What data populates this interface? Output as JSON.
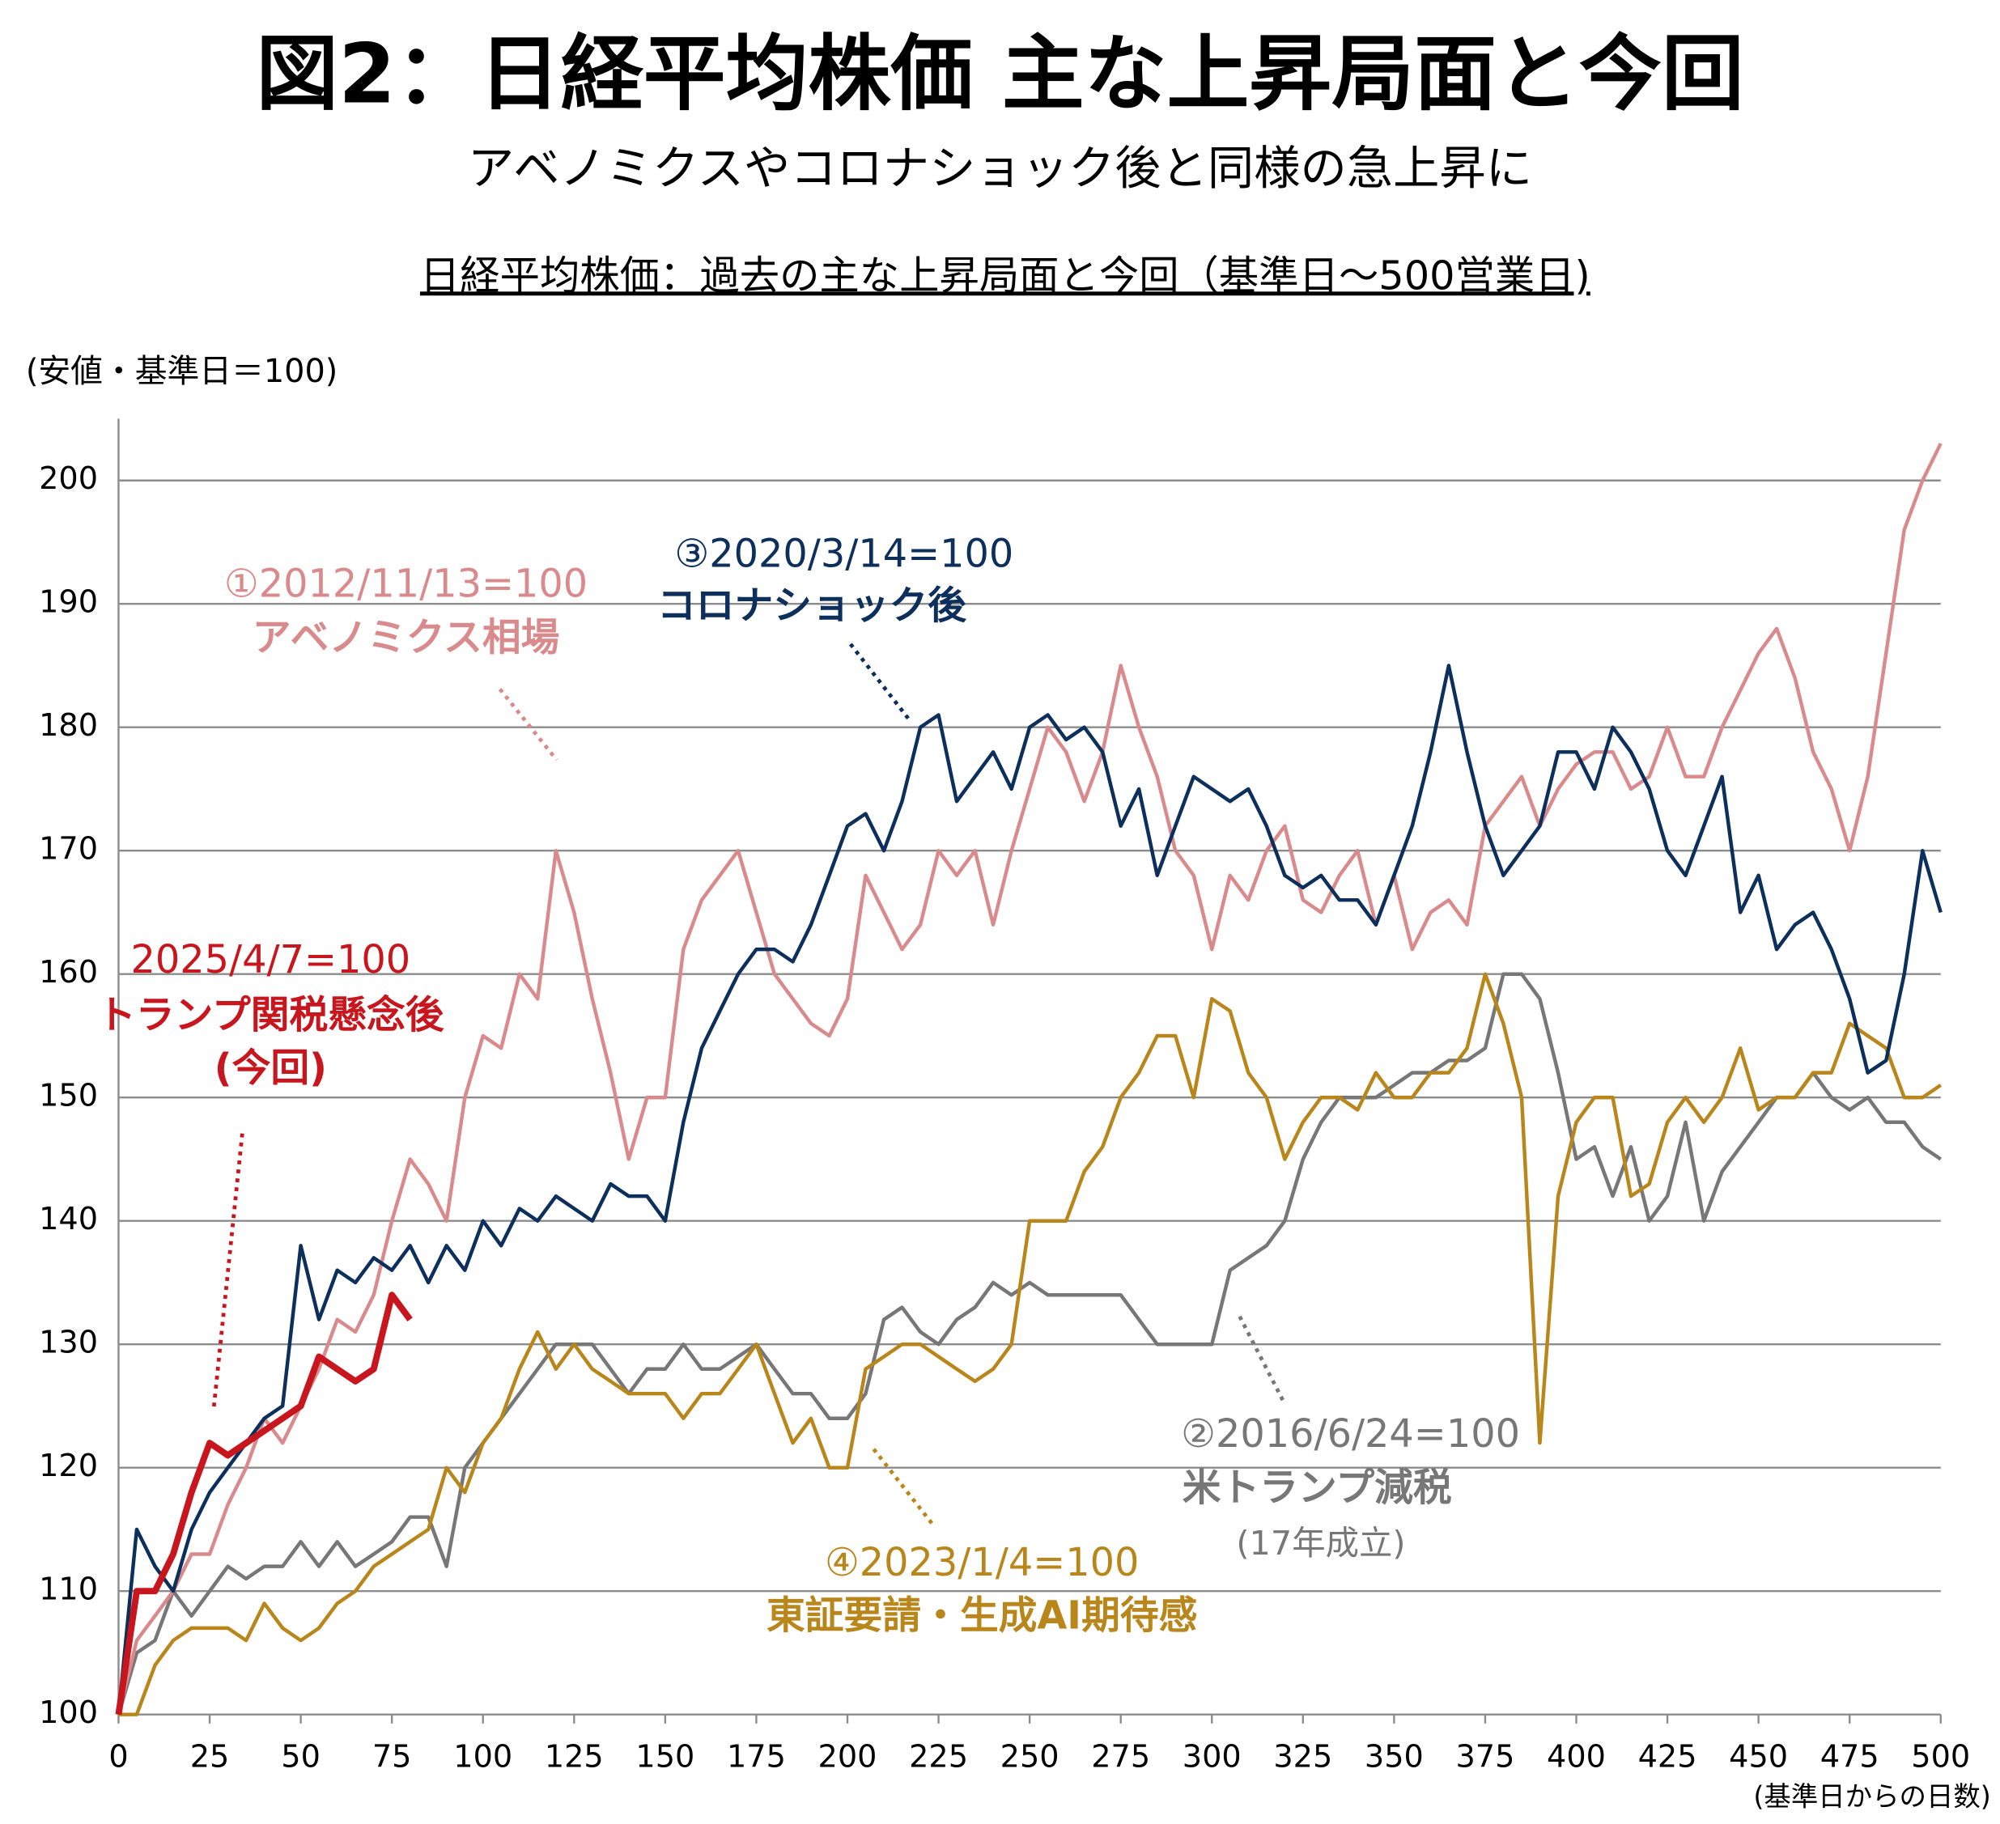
{
  "chart_data": {
    "type": "line",
    "title": "図2：日経平均株価 主な上昇局面と今回",
    "subtitle": "アベノミクスやコロナショック後と同様の急上昇に",
    "chart_title": "日経平均株価：過去の主な上昇局面と今回（基準日～500営業日)",
    "y_label": "(安値・基準日＝100)",
    "x_label": "(基準日からの日数)",
    "x": [
      0,
      5,
      10,
      15,
      20,
      25,
      30,
      35,
      40,
      45,
      50,
      55,
      60,
      65,
      70,
      75,
      80,
      85,
      90,
      95,
      100,
      105,
      110,
      115,
      120,
      125,
      130,
      135,
      140,
      145,
      150,
      155,
      160,
      165,
      170,
      175,
      180,
      185,
      190,
      195,
      200,
      205,
      210,
      215,
      220,
      225,
      230,
      235,
      240,
      245,
      250,
      255,
      260,
      265,
      270,
      275,
      280,
      285,
      290,
      295,
      300,
      305,
      310,
      315,
      320,
      325,
      330,
      335,
      340,
      345,
      350,
      355,
      360,
      365,
      370,
      375,
      380,
      385,
      390,
      395,
      400,
      405,
      410,
      415,
      420,
      425,
      430,
      435,
      440,
      445,
      450,
      455,
      460,
      465,
      470,
      475,
      480,
      485,
      490,
      495,
      500
    ],
    "xlim": [
      0,
      500
    ],
    "xticks": [
      0,
      25,
      50,
      75,
      100,
      125,
      150,
      175,
      200,
      225,
      250,
      275,
      300,
      325,
      350,
      375,
      400,
      425,
      450,
      475,
      500
    ],
    "ylim": [
      100,
      205
    ],
    "yticks": [
      100,
      110,
      120,
      130,
      140,
      150,
      160,
      170,
      180,
      190,
      200
    ],
    "grid": true,
    "series": [
      {
        "name": "米トランプ減税",
        "label": "②2016/6/24=100",
        "note": "(17年成立)",
        "color": "#777777",
        "values": [
          100,
          105,
          106,
          110,
          108,
          110,
          112,
          111,
          112,
          112,
          114,
          112,
          114,
          112,
          113,
          114,
          116,
          116,
          112,
          120,
          122,
          124,
          126,
          128,
          130,
          130,
          130,
          128,
          126,
          128,
          128,
          130,
          128,
          128,
          129,
          130,
          128,
          126,
          126,
          124,
          124,
          126,
          132,
          133,
          131,
          130,
          132,
          133,
          135,
          134,
          135,
          134,
          134,
          134,
          134,
          134,
          132,
          130,
          130,
          130,
          130,
          136,
          137,
          138,
          140,
          145,
          148,
          150,
          150,
          150,
          151,
          152,
          152,
          153,
          153,
          154,
          160,
          160,
          158,
          152,
          145,
          146,
          142,
          146,
          140,
          142,
          148,
          140,
          144,
          146,
          148,
          150,
          150,
          152,
          150,
          149,
          150,
          148,
          148,
          146,
          145
        ]
      },
      {
        "name": "東証要請・生成AI期待感",
        "label": "④2023/1/4=100",
        "color": "#b8861b",
        "values": [
          100,
          100,
          104,
          106,
          107,
          107,
          107,
          106,
          109,
          107,
          106,
          107,
          109,
          110,
          112,
          113,
          114,
          115,
          120,
          118,
          122,
          124,
          128,
          131,
          128,
          130,
          128,
          127,
          126,
          126,
          126,
          124,
          126,
          126,
          128,
          130,
          126,
          122,
          124,
          120,
          120,
          128,
          129,
          130,
          130,
          129,
          128,
          127,
          128,
          130,
          140,
          140,
          140,
          144,
          146,
          150,
          152,
          155,
          155,
          150,
          158,
          157,
          152,
          150,
          145,
          148,
          150,
          150,
          149,
          152,
          150,
          150,
          152,
          152,
          154,
          160,
          156,
          150,
          122,
          142,
          148,
          150,
          150,
          142,
          143,
          148,
          150,
          148,
          150,
          154,
          149,
          150,
          150,
          152,
          152,
          156,
          155,
          154,
          150,
          150,
          151
        ]
      },
      {
        "name": "アベノミクス相場",
        "label": "①2012/11/13=100",
        "color": "#d98a8c",
        "values": [
          100,
          106,
          108,
          110,
          113,
          113,
          117,
          120,
          124,
          122,
          125,
          128,
          132,
          131,
          134,
          140,
          145,
          143,
          140,
          150,
          155,
          154,
          160,
          158,
          170,
          165,
          158,
          152,
          145,
          150,
          150,
          162,
          166,
          168,
          170,
          165,
          160,
          158,
          156,
          155,
          158,
          168,
          165,
          162,
          164,
          170,
          168,
          170,
          164,
          170,
          175,
          180,
          178,
          174,
          178,
          185,
          180,
          176,
          170,
          168,
          162,
          168,
          166,
          170,
          172,
          166,
          165,
          168,
          170,
          164,
          168,
          162,
          165,
          166,
          164,
          172,
          174,
          176,
          172,
          175,
          177,
          178,
          178,
          175,
          176,
          180,
          176,
          176,
          180,
          183,
          186,
          188,
          184,
          178,
          175,
          170,
          176,
          186,
          196,
          200,
          203
        ]
      },
      {
        "name": "コロナショック後",
        "label": "③2020/3/14=100",
        "color": "#0d2f5b",
        "values": [
          100,
          115,
          112,
          110,
          115,
          118,
          120,
          122,
          124,
          125,
          138,
          132,
          136,
          135,
          137,
          136,
          138,
          135,
          138,
          136,
          140,
          138,
          141,
          140,
          142,
          141,
          140,
          143,
          142,
          142,
          140,
          148,
          154,
          157,
          160,
          162,
          162,
          161,
          164,
          168,
          172,
          173,
          170,
          174,
          180,
          181,
          174,
          176,
          178,
          175,
          180,
          181,
          179,
          180,
          178,
          172,
          175,
          168,
          172,
          176,
          175,
          174,
          175,
          172,
          168,
          167,
          168,
          166,
          166,
          164,
          168,
          172,
          178,
          185,
          178,
          172,
          168,
          170,
          172,
          178,
          178,
          175,
          180,
          178,
          175,
          170,
          168,
          172,
          176,
          165,
          168,
          162,
          164,
          165,
          162,
          158,
          152,
          153,
          160,
          170,
          165
        ]
      },
      {
        "name": "トランプ関税懸念後",
        "label": "2025/4/7=100",
        "note": "(今回)",
        "color": "#c8161e",
        "values": [
          100,
          110,
          110,
          113,
          118,
          122,
          121,
          122,
          123,
          124,
          125,
          129,
          128,
          127,
          128,
          134,
          132,
          null,
          null,
          null,
          null,
          null,
          null,
          null,
          null,
          null,
          null,
          null,
          null,
          null,
          null,
          null,
          null,
          null,
          null,
          null,
          null,
          null,
          null,
          null,
          null,
          null,
          null,
          null,
          null,
          null,
          null,
          null,
          null,
          null,
          null,
          null,
          null,
          null,
          null,
          null,
          null,
          null,
          null,
          null,
          null,
          null,
          null,
          null,
          null,
          null,
          null,
          null,
          null,
          null,
          null,
          null,
          null,
          null,
          null,
          null,
          null,
          null,
          null,
          null,
          null,
          null,
          null,
          null,
          null,
          null,
          null,
          null,
          null,
          null,
          null,
          null,
          null,
          null,
          null,
          null,
          null,
          null,
          null,
          null,
          null
        ]
      }
    ]
  }
}
